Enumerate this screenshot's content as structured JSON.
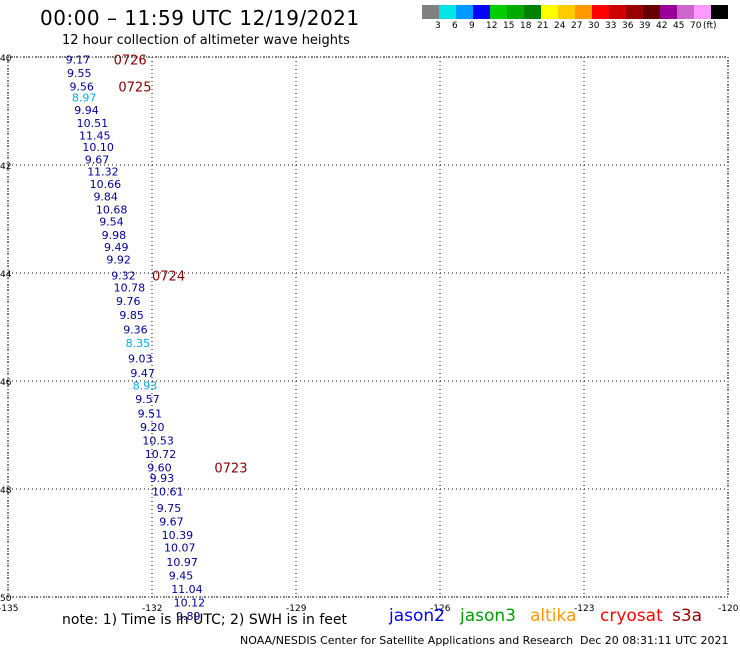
{
  "header": {
    "title": "00:00 – 11:59 UTC 12/19/2021",
    "subtitle": "12 hour collection of altimeter wave heights"
  },
  "scale": {
    "colors": [
      "#808080",
      "#00e5e5",
      "#0099ff",
      "#0000ff",
      "#00cc00",
      "#00aa00",
      "#008000",
      "#ffff00",
      "#ffcc00",
      "#ff9900",
      "#ff0000",
      "#cc0000",
      "#990000",
      "#660000",
      "#990099",
      "#cc66cc",
      "#ff99ff",
      "#000000"
    ],
    "labels": [
      "3",
      "6",
      "9",
      "12",
      "15",
      "18",
      "21",
      "24",
      "27",
      "30",
      "33",
      "36",
      "39",
      "42",
      "45",
      "70",
      "(ft)"
    ]
  },
  "map": {
    "lon_ticks": [
      -135,
      -132,
      -129,
      -126,
      -123,
      -120
    ],
    "lon_labels": [
      "-135",
      "-132",
      "-129",
      "-126",
      "-123",
      "-120"
    ],
    "lat_ticks": [
      40,
      42,
      44,
      46,
      48,
      50
    ],
    "lat_labels": [
      "40",
      "42",
      "44",
      "46",
      "48",
      "50"
    ],
    "time_labels": [
      {
        "text": "0726",
        "lon": -132.8,
        "lat": 40.05
      },
      {
        "text": "0725",
        "lon": -132.7,
        "lat": 40.55
      },
      {
        "text": "0724",
        "lon": -132.0,
        "lat": 44.05
      },
      {
        "text": "0723",
        "lon": -130.7,
        "lat": 47.6
      }
    ],
    "observations": [
      {
        "v": "9.17",
        "lon": -133.8,
        "lat": 40.05,
        "c": "#000099"
      },
      {
        "v": "9.55",
        "lon": -133.77,
        "lat": 40.3,
        "c": "#000099"
      },
      {
        "v": "9.56",
        "lon": -133.72,
        "lat": 40.55,
        "c": "#000099"
      },
      {
        "v": "8.97",
        "lon": -133.67,
        "lat": 40.75,
        "c": "#00aaee"
      },
      {
        "v": "9.94",
        "lon": -133.62,
        "lat": 40.98,
        "c": "#000099"
      },
      {
        "v": "10.51",
        "lon": -133.57,
        "lat": 41.22,
        "c": "#000099"
      },
      {
        "v": "11.45",
        "lon": -133.52,
        "lat": 41.45,
        "c": "#000099"
      },
      {
        "v": "10.10",
        "lon": -133.45,
        "lat": 41.67,
        "c": "#000099"
      },
      {
        "v": "9.67",
        "lon": -133.4,
        "lat": 41.9,
        "c": "#000099"
      },
      {
        "v": "11.32",
        "lon": -133.35,
        "lat": 42.12,
        "c": "#000099"
      },
      {
        "v": "10.66",
        "lon": -133.3,
        "lat": 42.35,
        "c": "#000099"
      },
      {
        "v": "9.84",
        "lon": -133.22,
        "lat": 42.58,
        "c": "#000099"
      },
      {
        "v": "10.68",
        "lon": -133.17,
        "lat": 42.82,
        "c": "#000099"
      },
      {
        "v": "9.54",
        "lon": -133.1,
        "lat": 43.05,
        "c": "#000099"
      },
      {
        "v": "9.98",
        "lon": -133.05,
        "lat": 43.3,
        "c": "#000099"
      },
      {
        "v": "9.49",
        "lon": -133.0,
        "lat": 43.52,
        "c": "#000099"
      },
      {
        "v": "9.92",
        "lon": -132.95,
        "lat": 43.75,
        "c": "#000099"
      },
      {
        "v": "9.32",
        "lon": -132.85,
        "lat": 44.05,
        "c": "#000099"
      },
      {
        "v": "10.78",
        "lon": -132.8,
        "lat": 44.27,
        "c": "#000099"
      },
      {
        "v": "9.76",
        "lon": -132.75,
        "lat": 44.52,
        "c": "#000099"
      },
      {
        "v": "9.85",
        "lon": -132.68,
        "lat": 44.78,
        "c": "#000099"
      },
      {
        "v": "9.36",
        "lon": -132.6,
        "lat": 45.05,
        "c": "#000099"
      },
      {
        "v": "8.35",
        "lon": -132.55,
        "lat": 45.3,
        "c": "#00aaee"
      },
      {
        "v": "9.03",
        "lon": -132.5,
        "lat": 45.58,
        "c": "#000099"
      },
      {
        "v": "9.47",
        "lon": -132.45,
        "lat": 45.85,
        "c": "#000099"
      },
      {
        "v": "8.93",
        "lon": -132.4,
        "lat": 46.08,
        "c": "#00aaee"
      },
      {
        "v": "9.57",
        "lon": -132.35,
        "lat": 46.33,
        "c": "#000099"
      },
      {
        "v": "9.51",
        "lon": -132.3,
        "lat": 46.6,
        "c": "#000099"
      },
      {
        "v": "9.20",
        "lon": -132.25,
        "lat": 46.85,
        "c": "#000099"
      },
      {
        "v": "10.53",
        "lon": -132.2,
        "lat": 47.1,
        "c": "#000099"
      },
      {
        "v": "10.72",
        "lon": -132.15,
        "lat": 47.35,
        "c": "#000099"
      },
      {
        "v": "9.60",
        "lon": -132.1,
        "lat": 47.6,
        "c": "#000099"
      },
      {
        "v": "9.93",
        "lon": -132.05,
        "lat": 47.8,
        "c": "#000099"
      },
      {
        "v": "10.61",
        "lon": -132.0,
        "lat": 48.05,
        "c": "#000099"
      },
      {
        "v": "9.75",
        "lon": -131.9,
        "lat": 48.35,
        "c": "#000099"
      },
      {
        "v": "9.67",
        "lon": -131.85,
        "lat": 48.6,
        "c": "#000099"
      },
      {
        "v": "10.39",
        "lon": -131.8,
        "lat": 48.85,
        "c": "#000099"
      },
      {
        "v": "10.07",
        "lon": -131.75,
        "lat": 49.08,
        "c": "#000099"
      },
      {
        "v": "10.97",
        "lon": -131.7,
        "lat": 49.35,
        "c": "#000099"
      },
      {
        "v": "9.45",
        "lon": -131.65,
        "lat": 49.6,
        "c": "#000099"
      },
      {
        "v": "11.04",
        "lon": -131.6,
        "lat": 49.85,
        "c": "#000099"
      },
      {
        "v": "10.12",
        "lon": -131.55,
        "lat": 50.1,
        "c": "#000099"
      },
      {
        "v": "9.89",
        "lon": -131.5,
        "lat": 50.35,
        "c": "#000099"
      }
    ]
  },
  "legend": {
    "note": "note: 1) Time is in UTC; 2) SWH is in feet",
    "satellites": [
      {
        "name": "jason2",
        "color": "#0000ff"
      },
      {
        "name": "jason3",
        "color": "#00a000"
      },
      {
        "name": "altika",
        "color": "#ff9900"
      },
      {
        "name": "cryosat",
        "color": "#ff0000"
      },
      {
        "name": "s3a",
        "color": "#990000"
      }
    ]
  },
  "footer": {
    "source": "NOAA/NESDIS Center for Satellite Applications and Research",
    "timestamp": "Dec 20 08:31:11 UTC 2021"
  }
}
